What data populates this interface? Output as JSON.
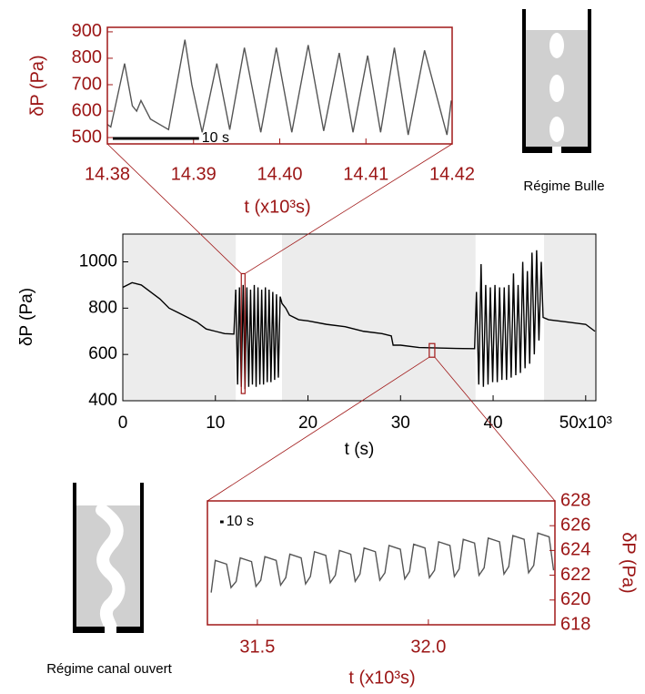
{
  "chart_data": [
    {
      "type": "line",
      "x_label": "t (s)",
      "y_label": "δP  (Pa)",
      "text_color": "#000000",
      "frame_color": "#000000",
      "yaxis_side": "left",
      "xlim": [
        0,
        51.1
      ],
      "ylim": [
        400,
        1120
      ],
      "xticks": [
        0,
        10,
        20,
        30,
        40,
        {
          "value": 50,
          "label": "50x10³"
        }
      ],
      "yticks": [
        400,
        600,
        800,
        1000
      ],
      "shaded_regions": [
        [
          0,
          12.2
        ],
        [
          17.2,
          38.1
        ],
        [
          45.5,
          51.1
        ]
      ],
      "shade_color": "#ececec",
      "zoom_boxes": [
        {
          "x": [
            12.8,
            13.2
          ],
          "y": [
            431,
            949
          ]
        },
        {
          "x": [
            33.1,
            33.7
          ],
          "y": [
            588,
            647
          ]
        }
      ],
      "zoom_color": "#a01818",
      "series": [
        {
          "color": "#000000",
          "x": [
            0,
            1,
            2,
            3,
            4,
            5,
            6,
            7,
            8,
            9,
            10,
            11,
            12,
            12.2,
            12.4,
            12.6,
            12.8,
            13.0,
            13.2,
            13.4,
            13.6,
            13.8,
            14.0,
            14.2,
            14.4,
            14.6,
            14.8,
            15.0,
            15.2,
            15.4,
            15.6,
            15.8,
            16.0,
            16.2,
            16.4,
            16.6,
            16.8,
            17.0,
            17.2,
            17.6,
            18,
            19,
            20,
            22,
            24,
            26,
            28,
            29,
            29.2,
            30,
            32,
            34,
            36,
            38,
            38.2,
            38.45,
            38.7,
            38.95,
            39.2,
            39.45,
            39.7,
            39.95,
            40.2,
            40.45,
            40.7,
            40.95,
            41.2,
            41.45,
            41.7,
            41.95,
            42.2,
            42.45,
            42.7,
            42.95,
            43.2,
            43.45,
            43.7,
            43.95,
            44.2,
            44.45,
            44.7,
            44.95,
            45.2,
            45.4,
            46,
            48,
            50,
            51
          ],
          "values": [
            890,
            910,
            900,
            870,
            840,
            800,
            780,
            760,
            740,
            710,
            700,
            690,
            688,
            880,
            470,
            890,
            460,
            900,
            450,
            890,
            460,
            880,
            470,
            900,
            460,
            890,
            470,
            880,
            470,
            890,
            480,
            880,
            480,
            870,
            490,
            860,
            500,
            850,
            820,
            800,
            770,
            750,
            745,
            730,
            720,
            700,
            690,
            680,
            640,
            640,
            630,
            628,
            626,
            625,
            870,
            470,
            990,
            460,
            900,
            470,
            890,
            480,
            900,
            480,
            890,
            490,
            890,
            490,
            900,
            500,
            950,
            510,
            900,
            520,
            1000,
            540,
            960,
            560,
            1040,
            600,
            1050,
            660,
            1000,
            760,
            750,
            740,
            730,
            700
          ]
        }
      ]
    },
    {
      "type": "line",
      "x_label": "t (x10³s)",
      "y_label": "δP  (Pa)",
      "text_color": "#9b1515",
      "frame_color": "#a01818",
      "yaxis_side": "left",
      "xlim": [
        14.38,
        14.42
      ],
      "ylim": [
        476,
        917
      ],
      "xticks": [
        14.38,
        14.39,
        {
          "value": 14.4,
          "label": "14.40"
        },
        14.41,
        14.42
      ],
      "yticks": [
        500,
        600,
        700,
        800,
        900
      ],
      "scale_bar": {
        "length": 0.01,
        "label": "10 s"
      },
      "annotation": "Régime Bulle",
      "series": [
        {
          "color": "#555555",
          "x": [
            14.38,
            14.3804,
            14.382,
            14.3829,
            14.3834,
            14.3839,
            14.385,
            14.3871,
            14.389,
            14.3898,
            14.391,
            14.3927,
            14.3942,
            14.3959,
            14.3978,
            14.3996,
            14.4014,
            14.4033,
            14.4051,
            14.4069,
            14.4085,
            14.4102,
            14.4117,
            14.4133,
            14.4149,
            14.4168,
            14.4194,
            14.4199
          ],
          "values": [
            550,
            540,
            780,
            620,
            600,
            640,
            570,
            530,
            870,
            700,
            520,
            780,
            530,
            840,
            520,
            840,
            520,
            850,
            525,
            820,
            520,
            810,
            520,
            840,
            510,
            830,
            510,
            640
          ]
        }
      ]
    },
    {
      "type": "line",
      "x_label": "t (x10³s)",
      "y_label": "δP  (Pa)",
      "text_color": "#9b1515",
      "frame_color": "#a01818",
      "yaxis_side": "right",
      "xlim": [
        31.354,
        32.37
      ],
      "ylim": [
        618,
        628
      ],
      "xticks": [
        31.5,
        {
          "value": 32,
          "label": "32.0"
        }
      ],
      "yticks": [
        618,
        620,
        622,
        624,
        626,
        628
      ],
      "scale_bar": {
        "length": 0.01,
        "label": "10 s"
      },
      "annotation": "Régime canal ouvert",
      "series": [
        {
          "color": "#555555",
          "x": [
            31.365,
            31.377,
            31.41,
            31.423,
            31.438,
            31.45,
            31.483,
            31.496,
            31.51,
            31.522,
            31.555,
            31.568,
            31.583,
            31.595,
            31.628,
            31.641,
            31.655,
            31.667,
            31.7,
            31.713,
            31.728,
            31.74,
            31.773,
            31.786,
            31.8,
            31.812,
            31.845,
            31.858,
            31.873,
            31.885,
            31.918,
            31.931,
            31.945,
            31.957,
            31.99,
            32.003,
            32.018,
            32.03,
            32.063,
            32.076,
            32.09,
            32.102,
            32.135,
            32.148,
            32.163,
            32.175,
            32.208,
            32.221,
            32.235,
            32.247,
            32.28,
            32.293,
            32.308,
            32.32,
            32.353,
            32.366
          ],
          "values": [
            620.6,
            623.2,
            622.9,
            621.0,
            621.5,
            623.4,
            623.1,
            621.1,
            621.6,
            623.5,
            623.2,
            621.2,
            621.8,
            623.7,
            623.4,
            621.3,
            621.9,
            623.9,
            623.6,
            621.4,
            622.0,
            624.0,
            623.7,
            621.5,
            622.1,
            624.2,
            623.9,
            621.6,
            622.2,
            624.4,
            624.1,
            621.7,
            622.3,
            624.5,
            624.2,
            621.8,
            622.4,
            624.7,
            624.4,
            621.9,
            622.5,
            624.9,
            624.6,
            622.0,
            622.6,
            625.0,
            624.7,
            622.1,
            622.7,
            625.2,
            624.9,
            622.2,
            622.8,
            625.4,
            625.1,
            622.4
          ]
        }
      ]
    }
  ]
}
